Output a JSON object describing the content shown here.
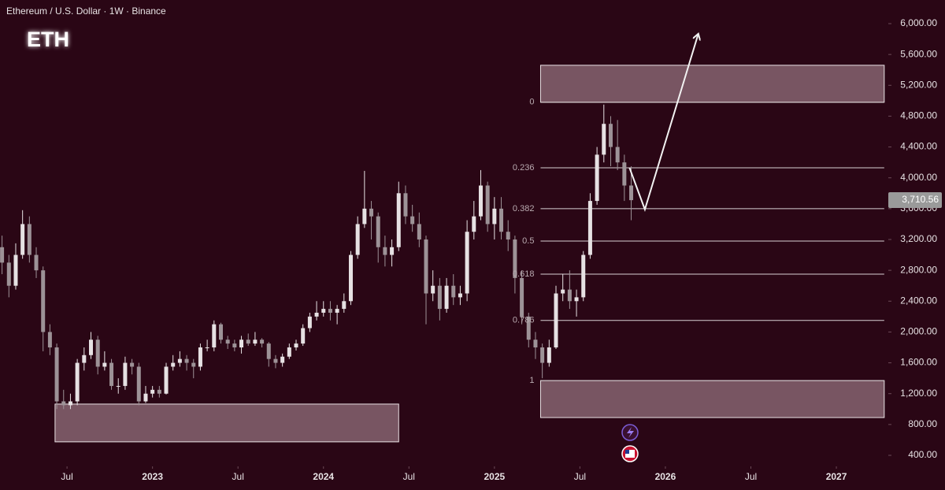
{
  "chart_data": {
    "type": "candlestick",
    "header": "Ethereum / U.S. Dollar · 1W · Binance",
    "title": "ETH",
    "x": [
      2022.12,
      2022.16,
      2022.2,
      2022.24,
      2022.28,
      2022.32,
      2022.36,
      2022.4,
      2022.44,
      2022.48,
      2022.52,
      2022.56,
      2022.6,
      2022.64,
      2022.68,
      2022.72,
      2022.76,
      2022.8,
      2022.84,
      2022.88,
      2022.92,
      2022.96,
      2023,
      2023.04,
      2023.08,
      2023.12,
      2023.16,
      2023.2,
      2023.24,
      2023.28,
      2023.32,
      2023.36,
      2023.4,
      2023.44,
      2023.48,
      2023.52,
      2023.56,
      2023.6,
      2023.64,
      2023.68,
      2023.72,
      2023.76,
      2023.8,
      2023.84,
      2023.88,
      2023.92,
      2023.96,
      2024,
      2024.04,
      2024.08,
      2024.12,
      2024.16,
      2024.2,
      2024.24,
      2024.28,
      2024.32,
      2024.36,
      2024.4,
      2024.44,
      2024.48,
      2024.52,
      2024.56,
      2024.6,
      2024.64,
      2024.68,
      2024.72,
      2024.76,
      2024.8,
      2024.84,
      2024.88,
      2024.92,
      2024.96,
      2025,
      2025.04,
      2025.08,
      2025.12,
      2025.16,
      2025.2,
      2025.24,
      2025.28,
      2025.32,
      2025.36,
      2025.4,
      2025.44,
      2025.48,
      2025.52,
      2025.56,
      2025.6,
      2025.64,
      2025.68,
      2025.72,
      2025.76,
      2025.8
    ],
    "open": [
      3100,
      2900,
      2600,
      3000,
      3400,
      3000,
      2800,
      2000,
      1800,
      1100,
      1050,
      1100,
      1600,
      1700,
      1900,
      1550,
      1600,
      1300,
      1300,
      1600,
      1550,
      1100,
      1200,
      1250,
      1200,
      1550,
      1600,
      1650,
      1600,
      1550,
      1800,
      1800,
      2100,
      1900,
      1850,
      1800,
      1900,
      1850,
      1900,
      1850,
      1650,
      1600,
      1680,
      1800,
      1850,
      2050,
      2200,
      2250,
      2300,
      2250,
      2300,
      2400,
      3000,
      3400,
      3600,
      3500,
      3100,
      3000,
      3100,
      3800,
      3500,
      3400,
      3200,
      2500,
      2600,
      2300,
      2600,
      2450,
      2500,
      3300,
      3500,
      3900,
      3400,
      3600,
      3300,
      3200,
      2700,
      2200,
      1900,
      1800,
      1600,
      1800,
      2500,
      2550,
      2400,
      2450,
      3000,
      3700,
      4300,
      4700,
      4400,
      4200,
      3900
    ],
    "high": [
      3250,
      3000,
      3150,
      3580,
      3500,
      3100,
      2850,
      2100,
      1850,
      1250,
      1200,
      1650,
      1800,
      2000,
      1950,
      1750,
      1650,
      1400,
      1680,
      1650,
      1600,
      1300,
      1300,
      1300,
      1600,
      1700,
      1750,
      1700,
      1650,
      1850,
      1900,
      2150,
      2120,
      1950,
      1900,
      1950,
      1980,
      2000,
      1920,
      1870,
      1700,
      1720,
      1850,
      1900,
      2100,
      2250,
      2400,
      2400,
      2400,
      2350,
      2500,
      3050,
      3500,
      4090,
      3700,
      3550,
      3250,
      3200,
      3950,
      3900,
      3650,
      3550,
      3250,
      2800,
      2700,
      2700,
      2750,
      2600,
      3450,
      3700,
      4100,
      3950,
      3750,
      3750,
      3450,
      3250,
      2800,
      2250,
      2000,
      1850,
      1900,
      2600,
      2750,
      2800,
      2550,
      3050,
      3800,
      4400,
      4950,
      4800,
      4750,
      4300,
      4150
    ],
    "low": [
      2750,
      2450,
      2550,
      2950,
      2900,
      2700,
      1750,
      1700,
      1000,
      1000,
      1000,
      1050,
      1500,
      1650,
      1450,
      1500,
      1250,
      1200,
      1250,
      1450,
      1050,
      1080,
      1150,
      1150,
      1190,
      1500,
      1550,
      1500,
      1400,
      1500,
      1750,
      1750,
      1850,
      1780,
      1750,
      1720,
      1820,
      1820,
      1800,
      1550,
      1530,
      1550,
      1650,
      1760,
      1820,
      2000,
      2150,
      2200,
      2150,
      2100,
      2250,
      2350,
      2950,
      3350,
      3200,
      2900,
      2850,
      2850,
      3050,
      3400,
      3300,
      3100,
      2100,
      2400,
      2150,
      2250,
      2350,
      2350,
      2400,
      3200,
      3450,
      3300,
      3200,
      3200,
      3050,
      2500,
      2100,
      1800,
      1650,
      1400,
      1550,
      1780,
      2400,
      2300,
      2200,
      2400,
      2950,
      3650,
      4200,
      4150,
      4100,
      3700,
      3450
    ],
    "close": [
      2900,
      2600,
      3000,
      3400,
      3000,
      2800,
      2000,
      1800,
      1100,
      1050,
      1100,
      1600,
      1700,
      1900,
      1550,
      1600,
      1300,
      1300,
      1600,
      1550,
      1100,
      1200,
      1250,
      1200,
      1550,
      1600,
      1650,
      1600,
      1550,
      1800,
      1800,
      2100,
      1900,
      1850,
      1800,
      1900,
      1850,
      1900,
      1850,
      1650,
      1600,
      1680,
      1800,
      1850,
      2050,
      2200,
      2250,
      2300,
      2250,
      2300,
      2400,
      3000,
      3400,
      3600,
      3500,
      3100,
      3000,
      3100,
      3800,
      3500,
      3400,
      3200,
      2500,
      2600,
      2300,
      2600,
      2450,
      2500,
      3300,
      3500,
      3900,
      3400,
      3600,
      3300,
      3200,
      2700,
      2200,
      1900,
      1800,
      1600,
      1800,
      2500,
      2550,
      2400,
      2450,
      3000,
      3700,
      4300,
      4700,
      4400,
      4200,
      3900,
      3710
    ],
    "up_color": "#e6e1e3",
    "down_color": "#9d9297",
    "xlim": [
      2022.108,
      2027.29
    ],
    "ylim": [
      400,
      6000
    ],
    "xticks": [
      {
        "value": 2022.5,
        "label": "Jul"
      },
      2023,
      {
        "value": 2023.5,
        "label": "Jul"
      },
      2024,
      {
        "value": 2024.5,
        "label": "Jul"
      },
      2025,
      {
        "value": 2025.5,
        "label": "Jul"
      },
      2026,
      {
        "value": 2026.5,
        "label": "Jul"
      },
      2027
    ],
    "yticks": [
      {
        "value": 400,
        "label": "400.00"
      },
      {
        "value": 800,
        "label": "800.00"
      },
      {
        "value": 1200,
        "label": "1,200.00"
      },
      {
        "value": 1600,
        "label": "1,600.00"
      },
      {
        "value": 2000,
        "label": "2,000.00"
      },
      {
        "value": 2400,
        "label": "2,400.00"
      },
      {
        "value": 2800,
        "label": "2,800.00"
      },
      {
        "value": 3200,
        "label": "3,200.00"
      },
      {
        "value": 3600,
        "label": "3,600.00"
      },
      {
        "value": 4000,
        "label": "4,000.00"
      },
      {
        "value": 4400,
        "label": "4,400.00"
      },
      {
        "value": 4800,
        "label": "4,800.00"
      },
      {
        "value": 5200,
        "label": "5,200.00"
      },
      {
        "value": 5600,
        "label": "5,600.00"
      },
      {
        "value": 6000,
        "label": "6,000.00"
      }
    ],
    "last_price": {
      "value": 3710.56,
      "label": "3,710.56"
    },
    "fib": {
      "levels": [
        0,
        0.236,
        0.382,
        0.5,
        0.618,
        0.786,
        1
      ],
      "prices": [
        4980,
        4130,
        3600,
        3180,
        2750,
        2150,
        1370
      ],
      "x": [
        2025.27,
        2027.28
      ]
    },
    "zones": [
      {
        "x": [
          2022.43,
          2024.44
        ],
        "y": [
          575,
          1065
        ]
      },
      {
        "x": [
          2025.27,
          2027.28
        ],
        "y": [
          4980,
          5460
        ]
      },
      {
        "x": [
          2025.27,
          2027.28
        ],
        "y": [
          890,
          1370
        ]
      }
    ],
    "projection": {
      "x": [
        2025.79,
        2025.88,
        2026.19
      ],
      "y": [
        4130,
        3590,
        5850
      ]
    }
  }
}
